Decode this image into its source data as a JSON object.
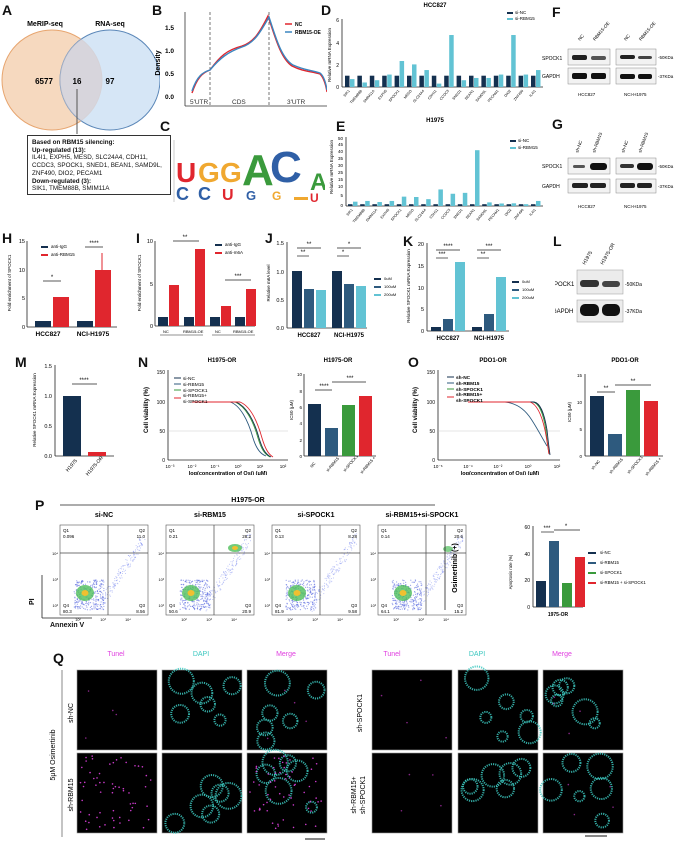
{
  "panels": {
    "A": {
      "label": "A",
      "set1": "MeRIP-seq",
      "set2": "RNA-seq",
      "only1": "6577",
      "overlap": "16",
      "only2": "97",
      "box_title": "Based on RBM15 silencing:",
      "up_title": "Up-regulated (13):",
      "up_genes": "IL4I1, EXPH5, MESD, SLC24A4, CDH11, CCDC3, SPOCK1, SNED1, BEAN1, SAMD9L, ZNF490, DIO2, PECAM1",
      "down_title": "Down-regulated (3):",
      "down_genes": "SIK1, TMEM88B, SMIM11A"
    },
    "B": {
      "label": "B"
    },
    "C": {
      "label": "C"
    },
    "D": {
      "label": "D"
    },
    "E": {
      "label": "E"
    },
    "F": {
      "label": "F",
      "lanes_left": [
        "NC",
        "RBM15-OE"
      ],
      "lanes_right": [
        "NC",
        "RBM15-OE"
      ],
      "rows": [
        "SPOCK1",
        "GAPDH"
      ],
      "markers": [
        "50KDa",
        "37KDa"
      ],
      "cells": [
        "HCC827",
        "NCI-H1975"
      ]
    },
    "G": {
      "label": "G",
      "lanes_left": [
        "sh-NC",
        "sh-RBM15"
      ],
      "lanes_right": [
        "sh-NC",
        "sh-RBM15"
      ],
      "rows": [
        "SPOCK1",
        "GAPDH"
      ],
      "markers": [
        "50KDa",
        "37KDa"
      ],
      "cells": [
        "HCC827",
        "NCI-H1975"
      ]
    },
    "H": {
      "label": "H"
    },
    "I": {
      "label": "I"
    },
    "J": {
      "label": "J"
    },
    "K": {
      "label": "K"
    },
    "L": {
      "label": "L",
      "lanes": [
        "H1975",
        "H1975-OR"
      ],
      "rows": [
        "SPOCK1",
        "GAPDH"
      ],
      "markers": [
        "50KDa",
        "37KDa"
      ]
    },
    "M": {
      "label": "M"
    },
    "N": {
      "label": "N"
    },
    "O": {
      "label": "O"
    },
    "P": {
      "label": "P",
      "group_title": "H1975-OR",
      "y_axis": "PI",
      "x_axis": "Annexin V",
      "side_label": "Osimertinib (+)",
      "plots": [
        {
          "title": "si-NC",
          "q1": "0.096",
          "q2": "11.0",
          "q3": "8.56",
          "q4": "80.3"
        },
        {
          "title": "si-RBM15",
          "q1": "0.21",
          "q2": "28.2",
          "q3": "20.9",
          "q4": "50.6"
        },
        {
          "title": "si-SPOCK1",
          "q1": "0.13",
          "q2": "8.28",
          "q3": "9.58",
          "q4": "81.9"
        },
        {
          "title": "si-RBM15+si-SPOCK1",
          "q1": "0.14",
          "q2": "20.6",
          "q3": "15.2",
          "q4": "64.1"
        }
      ]
    },
    "Q": {
      "label": "Q",
      "columns": [
        "Tunel",
        "DAPI",
        "Merge"
      ],
      "left_rows": [
        "sh-NC",
        "sh-RBM15"
      ],
      "right_rows": [
        "sh-SPOCK1",
        "sh-RBM15+ sh-SPOCK1"
      ],
      "treatment": "5μM Osimertinib"
    }
  },
  "colors": {
    "venn_left": "#f6d9bf",
    "venn_left_stroke": "#e7a56f",
    "venn_right": "#cfe2f5",
    "venn_right_stroke": "#5b87b8",
    "navy": "#14304f",
    "steel": "#2e5a7e",
    "cyan": "#62c3d4",
    "red": "#e0262e",
    "green": "#3a9a3c",
    "blue_line": "#3b86c0",
    "tunel": "#e040e0",
    "dapi": "#3cc8c0"
  },
  "chart_data": [
    {
      "panel": "B",
      "type": "line",
      "title": "",
      "xlabel": "",
      "ylabel": "Density",
      "x_regions": [
        "5'UTR",
        "CDS",
        "3'UTR"
      ],
      "ylim": [
        0,
        1.8
      ],
      "yticks": [
        "0.0",
        "0.5",
        "1.0",
        "1.5"
      ],
      "series": [
        {
          "name": "NC",
          "color": "#e0262e",
          "values": [
            0.2,
            0.55,
            0.7,
            0.95,
            1.2,
            1.25,
            1.32,
            1.55,
            1.83,
            1.2,
            0.8,
            0.72,
            0.66,
            0.65,
            0.4
          ]
        },
        {
          "name": "RBM15-OE",
          "color": "#3b86c0",
          "values": [
            0.25,
            0.6,
            0.72,
            0.93,
            1.17,
            1.24,
            1.3,
            1.53,
            1.82,
            1.18,
            0.82,
            0.74,
            0.67,
            0.65,
            0.38
          ]
        }
      ]
    },
    {
      "panel": "C",
      "type": "sequence_logo",
      "positions": 7,
      "top_letters": [
        "U",
        "G",
        "G",
        "A",
        "C",
        "",
        "A"
      ],
      "bottom_letters": [
        "C",
        "C",
        "U",
        "G",
        "G",
        "",
        "U"
      ],
      "ylabel": "bits"
    },
    {
      "panel": "D",
      "type": "bar",
      "title": "HCC827",
      "ylabel": "Relative mRNA Expression",
      "ylim": [
        0,
        6
      ],
      "yticks": [
        "0",
        "2",
        "4",
        "6"
      ],
      "categories": [
        "SIK1",
        "TMEM88B",
        "SMIM11A",
        "EXPH5",
        "SPOCK1",
        "MESD",
        "SLC24A4",
        "CDH11",
        "CCDC3",
        "SNED1",
        "BEAN1",
        "SAMD9L",
        "PECAM1",
        "DIO2",
        "ZNF490",
        "IL4I1"
      ],
      "series": [
        {
          "name": "si-NC",
          "values": [
            1,
            1,
            1,
            1,
            1,
            1,
            1,
            1,
            1,
            1,
            1,
            1,
            1,
            1,
            1,
            1
          ]
        },
        {
          "name": "si-RBM15",
          "values": [
            0.7,
            0.4,
            0.6,
            1.1,
            2.3,
            2.0,
            1.5,
            0.3,
            4.6,
            0.6,
            0.8,
            0.8,
            1.1,
            4.6,
            1.1,
            1.5
          ]
        }
      ]
    },
    {
      "panel": "E",
      "type": "bar",
      "title": "H1975",
      "ylabel": "Relative mRNA Expression",
      "ylim": [
        0,
        50
      ],
      "yticks": [
        "0",
        "5",
        "10",
        "15",
        "20",
        "25",
        "30",
        "35",
        "40",
        "45",
        "50"
      ],
      "categories": [
        "SIK1",
        "TMEM88B",
        "SMIM11A",
        "EXPH5",
        "SPOCK1",
        "MESD",
        "SLC24A4",
        "CDH11",
        "CCDC3",
        "SNED1",
        "BEAN1",
        "SAMD9L",
        "PECAM1",
        "DIO2",
        "ZNF490",
        "IL4I1"
      ],
      "series": [
        {
          "name": "si-NC",
          "values": [
            1,
            1,
            1,
            1,
            1,
            1,
            1,
            1,
            1,
            1,
            1,
            1,
            1,
            1,
            1,
            1
          ]
        },
        {
          "name": "si-RBM15",
          "values": [
            2.4,
            2.8,
            2.2,
            2.8,
            5.2,
            5.0,
            3.8,
            9.2,
            6.8,
            7.3,
            31,
            2.0,
            1.4,
            1.5,
            1.0,
            2.8
          ]
        }
      ]
    },
    {
      "panel": "H",
      "type": "bar",
      "ylabel": "Fold enrichment of SPOCK1",
      "ylim": [
        0,
        15
      ],
      "yticks": [
        "0",
        "5",
        "10",
        "15"
      ],
      "categories": [
        "HCC827",
        "NCI-H1975"
      ],
      "series": [
        {
          "name": "anti-IgG",
          "values": [
            1,
            1
          ]
        },
        {
          "name": "anti-RBM15",
          "values": [
            5.2,
            10.0
          ]
        }
      ],
      "significance": [
        "*",
        "****"
      ]
    },
    {
      "panel": "I",
      "type": "bar",
      "ylabel": "Fold enrichment of SPOCK1",
      "ylim": [
        0,
        10
      ],
      "yticks": [
        "0",
        "5",
        "10"
      ],
      "categories": [
        "NC",
        "RBM15-OE",
        "NC",
        "RBM15-OE"
      ],
      "groups": [
        "H1975",
        "HCC827"
      ],
      "series": [
        {
          "name": "anti-IgG",
          "values": [
            1,
            1,
            1,
            1
          ]
        },
        {
          "name": "anti-m6A",
          "values": [
            4.8,
            9.0,
            2.4,
            4.3
          ]
        }
      ],
      "significance": [
        "**",
        "***"
      ]
    },
    {
      "panel": "J",
      "type": "bar",
      "ylabel": "Relative m6A level",
      "ylim": [
        0,
        1.5
      ],
      "yticks": [
        "0.0",
        "0.5",
        "1.0",
        "1.5"
      ],
      "categories": [
        "HCC827",
        "NCI-H1975"
      ],
      "series": [
        {
          "name": "0uM",
          "values": [
            1.0,
            1.0
          ]
        },
        {
          "name": "100uM",
          "values": [
            0.68,
            0.78
          ]
        },
        {
          "name": "200uM",
          "values": [
            0.66,
            0.75
          ]
        }
      ],
      "significance": [
        "**",
        "**",
        "*",
        "*"
      ]
    },
    {
      "panel": "K",
      "type": "bar",
      "ylabel": "Relative SPOCK1 mRNA Expression",
      "ylim": [
        0,
        20
      ],
      "yticks": [
        "0",
        "5",
        "10",
        "15",
        "20"
      ],
      "categories": [
        "HCC827",
        "NCI-H1975"
      ],
      "series": [
        {
          "name": "0uM",
          "values": [
            1.0,
            1.0
          ]
        },
        {
          "name": "100uM",
          "values": [
            2.8,
            4.0
          ]
        },
        {
          "name": "200uM",
          "values": [
            15.8,
            12.3
          ]
        }
      ],
      "significance": [
        "***",
        "****",
        "**",
        "***"
      ]
    },
    {
      "panel": "M",
      "type": "bar",
      "ylabel": "Relative SPOCK1 mRNA Expression",
      "ylim": [
        0,
        1.5
      ],
      "yticks": [
        "0.0",
        "0.5",
        "1.0",
        "1.5"
      ],
      "categories": [
        "H1975",
        "H1975-OR"
      ],
      "values": [
        1.0,
        0.07
      ],
      "significance": [
        "****"
      ]
    },
    {
      "panel": "N-left",
      "type": "line",
      "title": "H1975-OR",
      "xlabel": "log(concentration of Osi) (μM)",
      "ylabel": "Cell viability (%)",
      "xticks": [
        "10⁻³",
        "10⁻²",
        "10⁻¹",
        "10⁰",
        "10¹",
        "10²"
      ],
      "yticks": [
        "0",
        "50",
        "100",
        "150"
      ],
      "series": [
        {
          "name": "si-NC",
          "ic50": 6.4
        },
        {
          "name": "si-RBM15",
          "ic50": 3.4
        },
        {
          "name": "si-SPOCK1",
          "ic50": 6.2
        },
        {
          "name": "si-RBM15+ si-SPOCK1",
          "ic50": 7.3
        }
      ]
    },
    {
      "panel": "N-right",
      "type": "bar",
      "title": "H1975-OR",
      "ylabel": "IC50 (μM)",
      "ylim": [
        0,
        10
      ],
      "yticks": [
        "0",
        "2",
        "4",
        "6",
        "8",
        "10"
      ],
      "categories": [
        "NC",
        "si-RBM15",
        "si-SPOCK1",
        "si-RBM15 + si-SPOCK1"
      ],
      "values": [
        6.4,
        3.4,
        6.2,
        7.3
      ],
      "significance": [
        "****",
        "***"
      ]
    },
    {
      "panel": "O-left",
      "type": "line",
      "title": "PDO1-OR",
      "xlabel": "log(concentration of Osi) (μM)",
      "ylabel": "Cell viability (%)",
      "xticks": [
        "10⁻⁶",
        "10⁻⁴",
        "10⁻²",
        "10⁰",
        "10²"
      ],
      "yticks": [
        "0",
        "50",
        "100",
        "150"
      ],
      "series": [
        {
          "name": "sh-NC",
          "ic50": 11
        },
        {
          "name": "sh-RBM15",
          "ic50": 4.1
        },
        {
          "name": "sh-SPOCK1",
          "ic50": 12
        },
        {
          "name": "sh-RBM15+ sh-SPOCK1",
          "ic50": 10
        }
      ]
    },
    {
      "panel": "O-right",
      "type": "bar",
      "title": "PDO1-OR",
      "ylabel": "IC50 (μM)",
      "ylim": [
        0,
        15
      ],
      "yticks": [
        "0",
        "5",
        "10",
        "15"
      ],
      "categories": [
        "sh-NC",
        "sh-RBM15",
        "sh-SPOCK1",
        "sh-RBM15 + sh-SPOCK1"
      ],
      "values": [
        11,
        4.1,
        12,
        10
      ],
      "significance": [
        "**",
        "**"
      ]
    },
    {
      "panel": "P-bar",
      "type": "bar",
      "xlabel": "1975-OR",
      "ylabel": "Apoptosis rate (%)",
      "ylim": [
        0,
        60
      ],
      "yticks": [
        "0",
        "20",
        "40",
        "60"
      ],
      "categories": [
        "si-NC",
        "si-RBM15",
        "si-SPOCK1",
        "si-RBM15 + si-SPOCK1"
      ],
      "values": [
        19.5,
        49,
        18,
        37
      ],
      "significance": [
        "***",
        "*"
      ]
    }
  ]
}
